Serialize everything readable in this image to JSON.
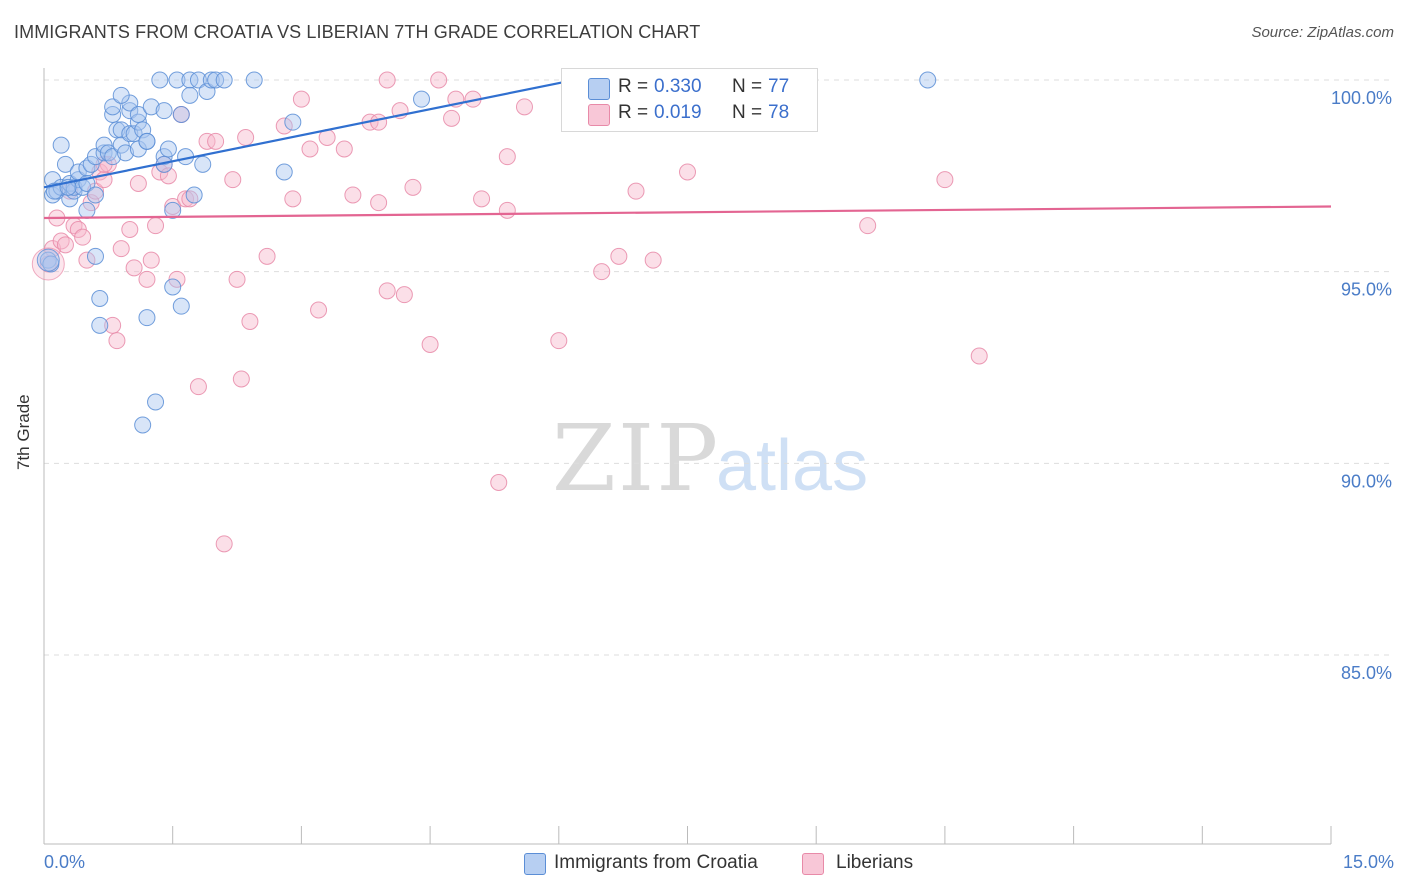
{
  "title": "IMMIGRANTS FROM CROATIA VS LIBERIAN 7TH GRADE CORRELATION CHART",
  "source": "Source: ZipAtlas.com",
  "watermark": {
    "zip": "ZIP",
    "atlas": "atlas"
  },
  "legend": {
    "r_label": "R =",
    "n_label": "N =",
    "rows": [
      {
        "r": "0.330",
        "n": "77"
      },
      {
        "r": "0.019",
        "n": "78"
      }
    ]
  },
  "colors": {
    "croatia_fill": "#a9c6f0",
    "croatia_stroke": "#5b8ed6",
    "croatia_line": "#3070d0",
    "liberia_fill": "#f6b7cb",
    "liberia_stroke": "#e88aa8",
    "liberia_line": "#e36592",
    "axis_text": "#4a7cc7",
    "grid": "#dddddd"
  },
  "chart_data": {
    "type": "scatter",
    "title": "IMMIGRANTS FROM CROATIA VS LIBERIAN 7TH GRADE CORRELATION CHART",
    "xlabel": "",
    "ylabel": "7th Grade",
    "xlim": [
      0,
      15
    ],
    "ylim": [
      80.3,
      100.7
    ],
    "x_tick_labels": [
      "0.0%",
      "15.0%"
    ],
    "y_ticks": [
      85,
      90,
      95,
      100
    ],
    "y_tick_labels": [
      "85.0%",
      "90.0%",
      "95.0%",
      "100.0%"
    ],
    "grid": true,
    "legend_position": "top-center",
    "series": [
      {
        "name": "Immigrants from Croatia",
        "R": 0.33,
        "N": 77,
        "trend": {
          "x": [
            0.0,
            6.4
          ],
          "y": [
            97.2,
            100.1
          ]
        },
        "points": [
          [
            0.05,
            95.3
          ],
          [
            0.08,
            95.2
          ],
          [
            0.1,
            97.0
          ],
          [
            0.1,
            97.4
          ],
          [
            0.15,
            97.1
          ],
          [
            0.2,
            98.3
          ],
          [
            0.2,
            97.2
          ],
          [
            0.25,
            97.8
          ],
          [
            0.3,
            97.3
          ],
          [
            0.3,
            96.9
          ],
          [
            0.35,
            97.1
          ],
          [
            0.35,
            97.2
          ],
          [
            0.4,
            97.4
          ],
          [
            0.4,
            97.6
          ],
          [
            0.45,
            97.2
          ],
          [
            0.5,
            97.7
          ],
          [
            0.5,
            97.3
          ],
          [
            0.5,
            96.6
          ],
          [
            0.55,
            97.8
          ],
          [
            0.6,
            98.0
          ],
          [
            0.6,
            95.4
          ],
          [
            0.65,
            94.3
          ],
          [
            0.65,
            93.6
          ],
          [
            0.7,
            98.1
          ],
          [
            0.7,
            98.3
          ],
          [
            0.75,
            98.1
          ],
          [
            0.8,
            98.0
          ],
          [
            0.8,
            99.1
          ],
          [
            0.8,
            99.3
          ],
          [
            0.85,
            98.7
          ],
          [
            0.9,
            98.7
          ],
          [
            0.9,
            98.3
          ],
          [
            0.95,
            98.1
          ],
          [
            1.0,
            98.6
          ],
          [
            1.0,
            99.2
          ],
          [
            1.0,
            99.4
          ],
          [
            1.05,
            98.6
          ],
          [
            1.1,
            98.9
          ],
          [
            1.1,
            98.2
          ],
          [
            1.1,
            99.1
          ],
          [
            1.15,
            98.7
          ],
          [
            1.2,
            98.4
          ],
          [
            1.2,
            93.8
          ],
          [
            1.25,
            99.3
          ],
          [
            1.3,
            91.6
          ],
          [
            1.35,
            100.0
          ],
          [
            1.4,
            98.0
          ],
          [
            1.4,
            97.8
          ],
          [
            1.4,
            99.2
          ],
          [
            1.45,
            98.2
          ],
          [
            1.5,
            96.6
          ],
          [
            1.5,
            94.6
          ],
          [
            1.55,
            100.0
          ],
          [
            1.6,
            99.1
          ],
          [
            1.6,
            94.1
          ],
          [
            1.65,
            98.0
          ],
          [
            1.7,
            100.0
          ],
          [
            1.75,
            97.0
          ],
          [
            1.8,
            100.0
          ],
          [
            1.85,
            97.8
          ],
          [
            1.9,
            99.7
          ],
          [
            1.95,
            100.0
          ],
          [
            2.0,
            100.0
          ],
          [
            2.1,
            100.0
          ],
          [
            2.45,
            100.0
          ],
          [
            2.8,
            97.6
          ],
          [
            2.9,
            98.9
          ],
          [
            4.4,
            99.5
          ],
          [
            6.6,
            100.0
          ],
          [
            10.3,
            100.0
          ],
          [
            1.15,
            91.0
          ],
          [
            0.12,
            97.1
          ],
          [
            0.9,
            99.6
          ],
          [
            0.28,
            97.2
          ],
          [
            1.2,
            98.4
          ],
          [
            0.6,
            97.0
          ],
          [
            1.7,
            99.6
          ]
        ]
      },
      {
        "name": "Liberians",
        "R": 0.019,
        "N": 78,
        "trend": {
          "x": [
            0.0,
            15.0
          ],
          "y": [
            96.4,
            96.7
          ]
        },
        "points": [
          [
            0.05,
            95.2
          ],
          [
            0.1,
            95.6
          ],
          [
            0.15,
            96.4
          ],
          [
            0.2,
            95.8
          ],
          [
            0.25,
            95.7
          ],
          [
            0.3,
            97.1
          ],
          [
            0.35,
            96.2
          ],
          [
            0.4,
            96.1
          ],
          [
            0.45,
            95.9
          ],
          [
            0.5,
            95.3
          ],
          [
            0.55,
            96.8
          ],
          [
            0.6,
            97.1
          ],
          [
            0.65,
            97.6
          ],
          [
            0.7,
            97.4
          ],
          [
            0.75,
            97.8
          ],
          [
            0.8,
            93.6
          ],
          [
            0.85,
            93.2
          ],
          [
            0.9,
            95.6
          ],
          [
            1.0,
            96.1
          ],
          [
            1.05,
            95.1
          ],
          [
            1.1,
            97.3
          ],
          [
            1.2,
            94.8
          ],
          [
            1.25,
            95.3
          ],
          [
            1.3,
            96.2
          ],
          [
            1.35,
            97.6
          ],
          [
            1.4,
            97.8
          ],
          [
            1.5,
            96.7
          ],
          [
            1.55,
            94.8
          ],
          [
            1.6,
            99.1
          ],
          [
            1.65,
            96.9
          ],
          [
            1.7,
            96.9
          ],
          [
            1.8,
            92.0
          ],
          [
            1.9,
            98.4
          ],
          [
            2.0,
            98.4
          ],
          [
            2.1,
            87.9
          ],
          [
            2.2,
            97.4
          ],
          [
            2.25,
            94.8
          ],
          [
            2.3,
            92.2
          ],
          [
            2.35,
            98.5
          ],
          [
            2.4,
            93.7
          ],
          [
            2.6,
            95.4
          ],
          [
            2.8,
            98.8
          ],
          [
            2.9,
            96.9
          ],
          [
            3.0,
            99.5
          ],
          [
            3.2,
            94.0
          ],
          [
            3.3,
            98.5
          ],
          [
            3.5,
            98.2
          ],
          [
            3.6,
            97.0
          ],
          [
            3.8,
            98.9
          ],
          [
            3.9,
            96.8
          ],
          [
            4.0,
            100.0
          ],
          [
            4.0,
            94.5
          ],
          [
            4.15,
            99.2
          ],
          [
            4.2,
            94.4
          ],
          [
            4.3,
            97.2
          ],
          [
            4.5,
            93.1
          ],
          [
            4.6,
            100.0
          ],
          [
            4.75,
            99.0
          ],
          [
            5.0,
            99.5
          ],
          [
            5.1,
            96.9
          ],
          [
            5.3,
            89.5
          ],
          [
            5.4,
            96.6
          ],
          [
            5.6,
            99.3
          ],
          [
            6.0,
            93.2
          ],
          [
            6.5,
            95.0
          ],
          [
            6.7,
            95.4
          ],
          [
            6.9,
            97.1
          ],
          [
            7.1,
            95.3
          ],
          [
            7.5,
            97.6
          ],
          [
            9.6,
            96.2
          ],
          [
            10.5,
            97.4
          ],
          [
            10.9,
            92.8
          ],
          [
            3.1,
            98.2
          ],
          [
            5.4,
            98.0
          ],
          [
            3.9,
            98.9
          ],
          [
            4.8,
            99.5
          ],
          [
            1.45,
            97.5
          ],
          [
            0.7,
            97.8
          ]
        ]
      }
    ]
  }
}
